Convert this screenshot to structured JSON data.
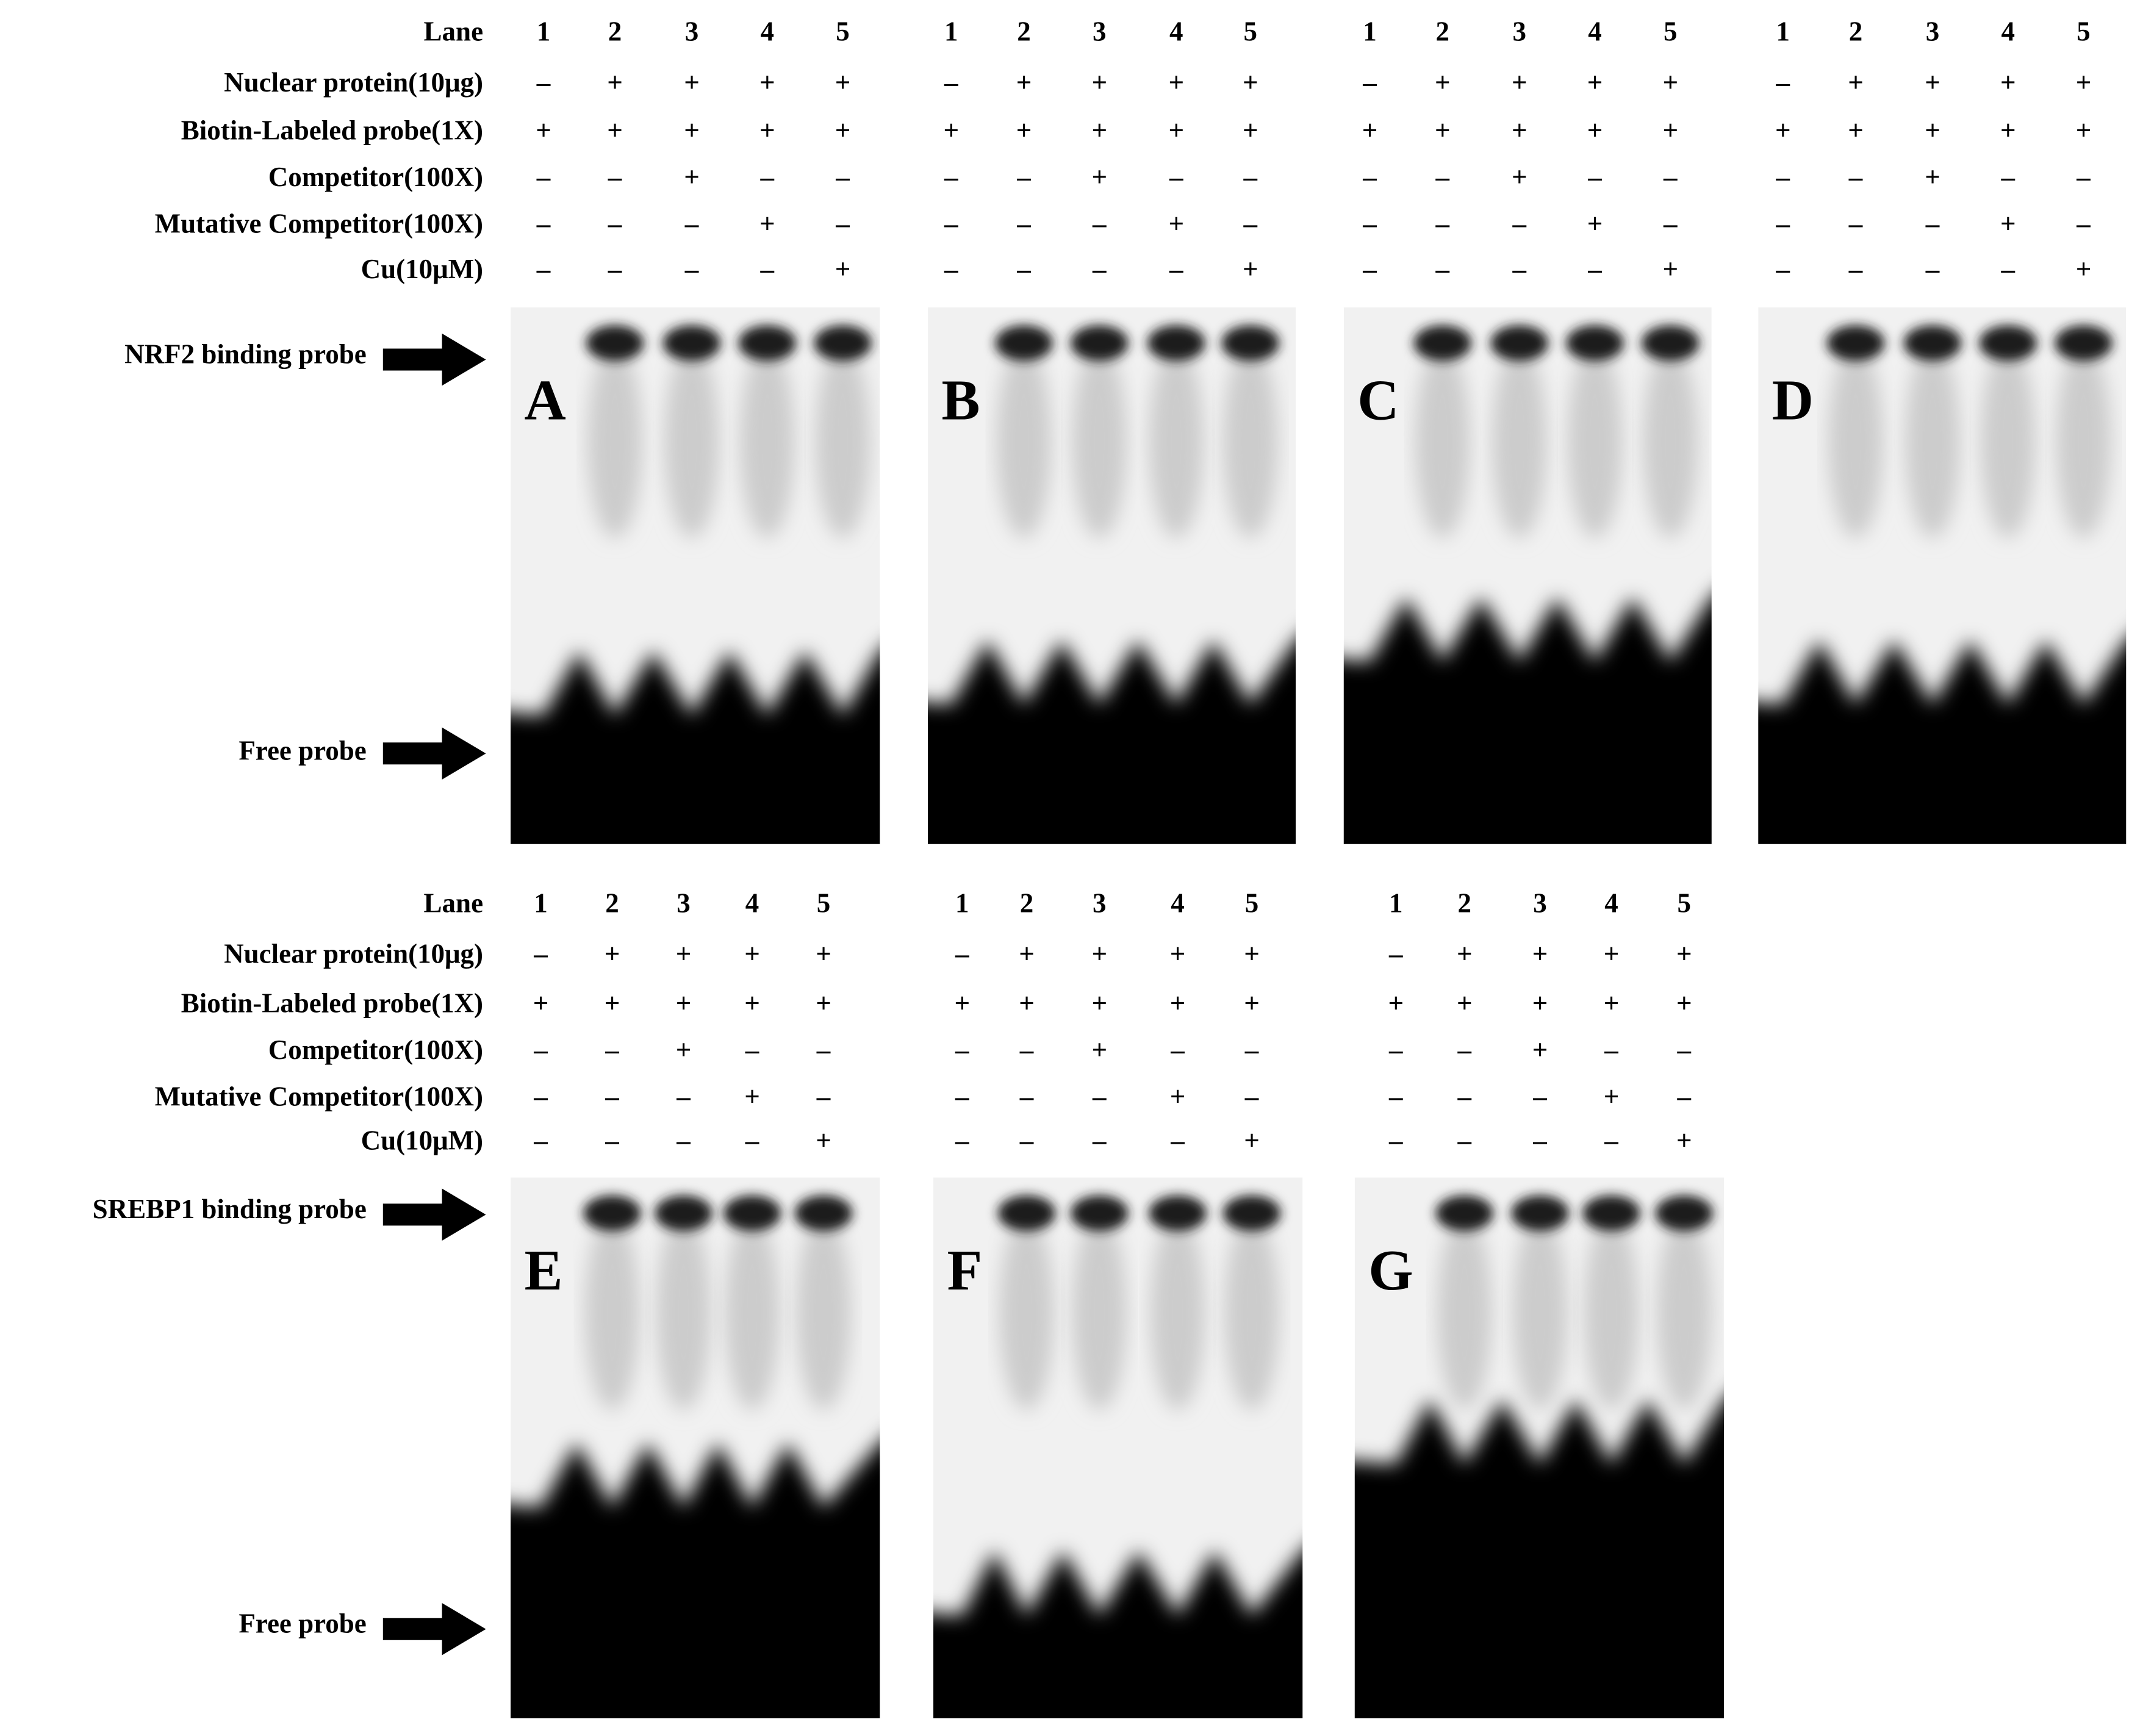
{
  "sections": [
    {
      "row_labels": [
        "Lane",
        "Nuclear protein(10μg)",
        "Biotin-Labeled probe(1X)",
        "Competitor(100X)",
        "Mutative Competitor(100X)",
        "Cu(10μM)"
      ],
      "probe_labels": [
        "NRF2 binding probe",
        "Free probe"
      ],
      "panels": [
        {
          "letter": "A",
          "lanes": [
            "1",
            "2",
            "3",
            "4",
            "5"
          ],
          "rows": [
            [
              "–",
              "+",
              "+",
              "+",
              "+"
            ],
            [
              "+",
              "+",
              "+",
              "+",
              "+"
            ],
            [
              "–",
              "–",
              "+",
              "–",
              "–"
            ],
            [
              "–",
              "–",
              "–",
              "+",
              "–"
            ],
            [
              "–",
              "–",
              "–",
              "–",
              "+"
            ]
          ]
        },
        {
          "letter": "B",
          "lanes": [
            "1",
            "2",
            "3",
            "4",
            "5"
          ],
          "rows": [
            [
              "–",
              "+",
              "+",
              "+",
              "+"
            ],
            [
              "+",
              "+",
              "+",
              "+",
              "+"
            ],
            [
              "–",
              "–",
              "+",
              "–",
              "–"
            ],
            [
              "–",
              "–",
              "–",
              "+",
              "–"
            ],
            [
              "–",
              "–",
              "–",
              "–",
              "+"
            ]
          ]
        },
        {
          "letter": "C",
          "lanes": [
            "1",
            "2",
            "3",
            "4",
            "5"
          ],
          "rows": [
            [
              "–",
              "+",
              "+",
              "+",
              "+"
            ],
            [
              "+",
              "+",
              "+",
              "+",
              "+"
            ],
            [
              "–",
              "–",
              "+",
              "–",
              "–"
            ],
            [
              "–",
              "–",
              "–",
              "+",
              "–"
            ],
            [
              "–",
              "–",
              "–",
              "–",
              "+"
            ]
          ]
        },
        {
          "letter": "D",
          "lanes": [
            "1",
            "2",
            "3",
            "4",
            "5"
          ],
          "rows": [
            [
              "–",
              "+",
              "+",
              "+",
              "+"
            ],
            [
              "+",
              "+",
              "+",
              "+",
              "+"
            ],
            [
              "–",
              "–",
              "+",
              "–",
              "–"
            ],
            [
              "–",
              "–",
              "–",
              "+",
              "–"
            ],
            [
              "–",
              "–",
              "–",
              "–",
              "+"
            ]
          ]
        }
      ]
    },
    {
      "row_labels": [
        "Lane",
        "Nuclear protein(10μg)",
        "Biotin-Labeled probe(1X)",
        "Competitor(100X)",
        "Mutative Competitor(100X)",
        "Cu(10μM)"
      ],
      "probe_labels": [
        "SREBP1 binding probe",
        "Free probe"
      ],
      "panels": [
        {
          "letter": "E",
          "lanes": [
            "1",
            "2",
            "3",
            "4",
            "5"
          ],
          "rows": [
            [
              "–",
              "+",
              "+",
              "+",
              "+"
            ],
            [
              "+",
              "+",
              "+",
              "+",
              "+"
            ],
            [
              "–",
              "–",
              "+",
              "–",
              "–"
            ],
            [
              "–",
              "–",
              "–",
              "+",
              "–"
            ],
            [
              "–",
              "–",
              "–",
              "–",
              "+"
            ]
          ]
        },
        {
          "letter": "F",
          "lanes": [
            "1",
            "2",
            "3",
            "4",
            "5"
          ],
          "rows": [
            [
              "–",
              "+",
              "+",
              "+",
              "+"
            ],
            [
              "+",
              "+",
              "+",
              "+",
              "+"
            ],
            [
              "–",
              "–",
              "+",
              "–",
              "–"
            ],
            [
              "–",
              "–",
              "–",
              "+",
              "–"
            ],
            [
              "–",
              "–",
              "–",
              "–",
              "+"
            ]
          ]
        },
        {
          "letter": "G",
          "lanes": [
            "1",
            "2",
            "3",
            "4",
            "5"
          ],
          "rows": [
            [
              "–",
              "+",
              "+",
              "+",
              "+"
            ],
            [
              "+",
              "+",
              "+",
              "+",
              "+"
            ],
            [
              "–",
              "–",
              "+",
              "–",
              "–"
            ],
            [
              "–",
              "–",
              "–",
              "+",
              "–"
            ],
            [
              "–",
              "–",
              "–",
              "–",
              "+"
            ]
          ]
        }
      ]
    }
  ]
}
